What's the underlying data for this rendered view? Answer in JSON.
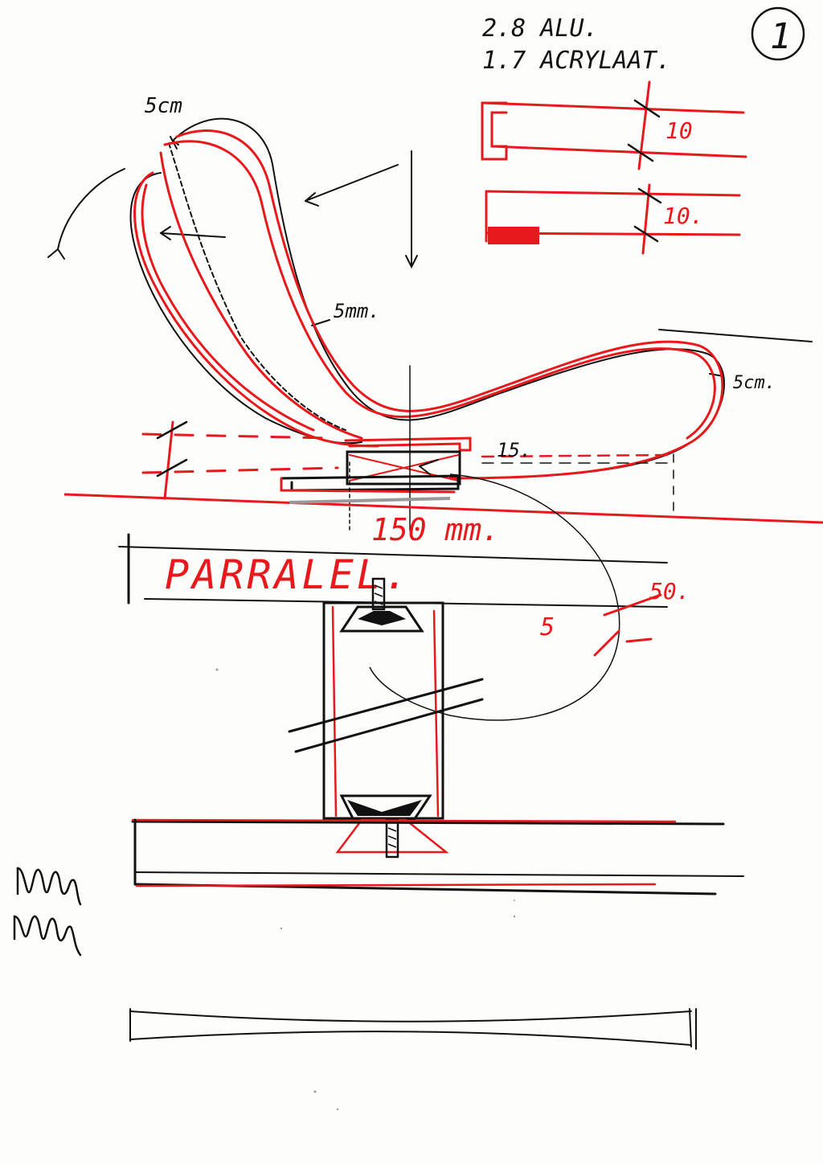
{
  "page_number": "1",
  "notes": {
    "line1": "2.8  ALU.",
    "line2": "1.7  ACRYLAAT."
  },
  "dimensions": {
    "top_profile": "10",
    "bottom_profile": "10.",
    "left_tip": "5cm",
    "right_tip": "5cm.",
    "loop_gap": "5mm.",
    "gap_15": "15.",
    "width_150": "150 mm.",
    "radius_50": "50.",
    "small_5": "5"
  },
  "labels": {
    "parallel": "PARRALEL."
  },
  "colors": {
    "black_ink": "#111111",
    "red_ink": "#e8191c",
    "paper": "#fdfdfb"
  }
}
